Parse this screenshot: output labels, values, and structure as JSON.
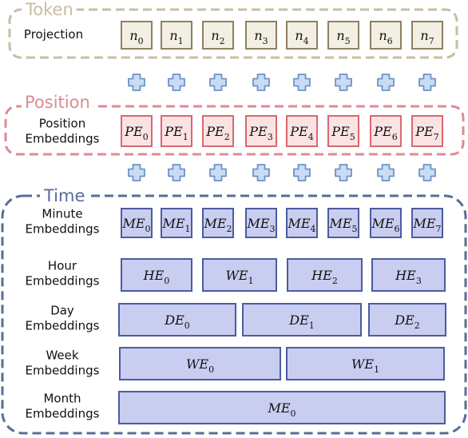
{
  "colors": {
    "token_border": "#c9bea3",
    "token_cell_fill": "#f3efe3",
    "token_cell_stroke": "#8e8062",
    "position_border": "#dd8c90",
    "position_cell_fill": "#fbe3e4",
    "position_cell_stroke": "#d9686f",
    "time_border": "#5a6c98",
    "time_cell_fill": "#c9cdf0",
    "time_cell_stroke": "#4b5c9f",
    "plus_fill": "#c9dcf5",
    "plus_stroke": "#6f93c8"
  },
  "icons": {
    "plus": "plus-icon"
  },
  "groups": {
    "token": {
      "title": "Token",
      "rows": [
        {
          "label_lines": [
            "Projection"
          ],
          "cells": [
            {
              "base": "n",
              "sub": "0"
            },
            {
              "base": "n",
              "sub": "1"
            },
            {
              "base": "n",
              "sub": "2"
            },
            {
              "base": "n",
              "sub": "3"
            },
            {
              "base": "n",
              "sub": "4"
            },
            {
              "base": "n",
              "sub": "5"
            },
            {
              "base": "n",
              "sub": "6"
            },
            {
              "base": "n",
              "sub": "7"
            }
          ]
        }
      ]
    },
    "position": {
      "title": "Position",
      "rows": [
        {
          "label_lines": [
            "Position",
            "Embeddings"
          ],
          "cells": [
            {
              "base": "PE",
              "sub": "0"
            },
            {
              "base": "PE",
              "sub": "1"
            },
            {
              "base": "PE",
              "sub": "2"
            },
            {
              "base": "PE",
              "sub": "3"
            },
            {
              "base": "PE",
              "sub": "4"
            },
            {
              "base": "PE",
              "sub": "5"
            },
            {
              "base": "PE",
              "sub": "6"
            },
            {
              "base": "PE",
              "sub": "7"
            }
          ]
        }
      ]
    },
    "time": {
      "title": "Time",
      "rows": [
        {
          "label_lines": [
            "Minute",
            "Embeddings"
          ],
          "cells": [
            {
              "base": "ME",
              "sub": "0"
            },
            {
              "base": "ME",
              "sub": "1"
            },
            {
              "base": "ME",
              "sub": "2"
            },
            {
              "base": "ME",
              "sub": "3"
            },
            {
              "base": "ME",
              "sub": "4"
            },
            {
              "base": "ME",
              "sub": "5"
            },
            {
              "base": "ME",
              "sub": "6"
            },
            {
              "base": "ME",
              "sub": "7"
            }
          ]
        },
        {
          "label_lines": [
            "Hour",
            "Embeddings"
          ],
          "cells": [
            {
              "base": "HE",
              "sub": "0"
            },
            {
              "base": "WE",
              "sub": "1"
            },
            {
              "base": "HE",
              "sub": "2"
            },
            {
              "base": "HE",
              "sub": "3"
            }
          ]
        },
        {
          "label_lines": [
            "Day",
            "Embeddings"
          ],
          "cells": [
            {
              "base": "DE",
              "sub": "0"
            },
            {
              "base": "DE",
              "sub": "1"
            },
            {
              "base": "DE",
              "sub": "2"
            }
          ]
        },
        {
          "label_lines": [
            "Week",
            "Embeddings"
          ],
          "cells": [
            {
              "base": "WE",
              "sub": "0"
            },
            {
              "base": "WE",
              "sub": "1"
            }
          ]
        },
        {
          "label_lines": [
            "Month",
            "Embeddings"
          ],
          "cells": [
            {
              "base": "ME",
              "sub": "0"
            }
          ]
        }
      ]
    }
  }
}
